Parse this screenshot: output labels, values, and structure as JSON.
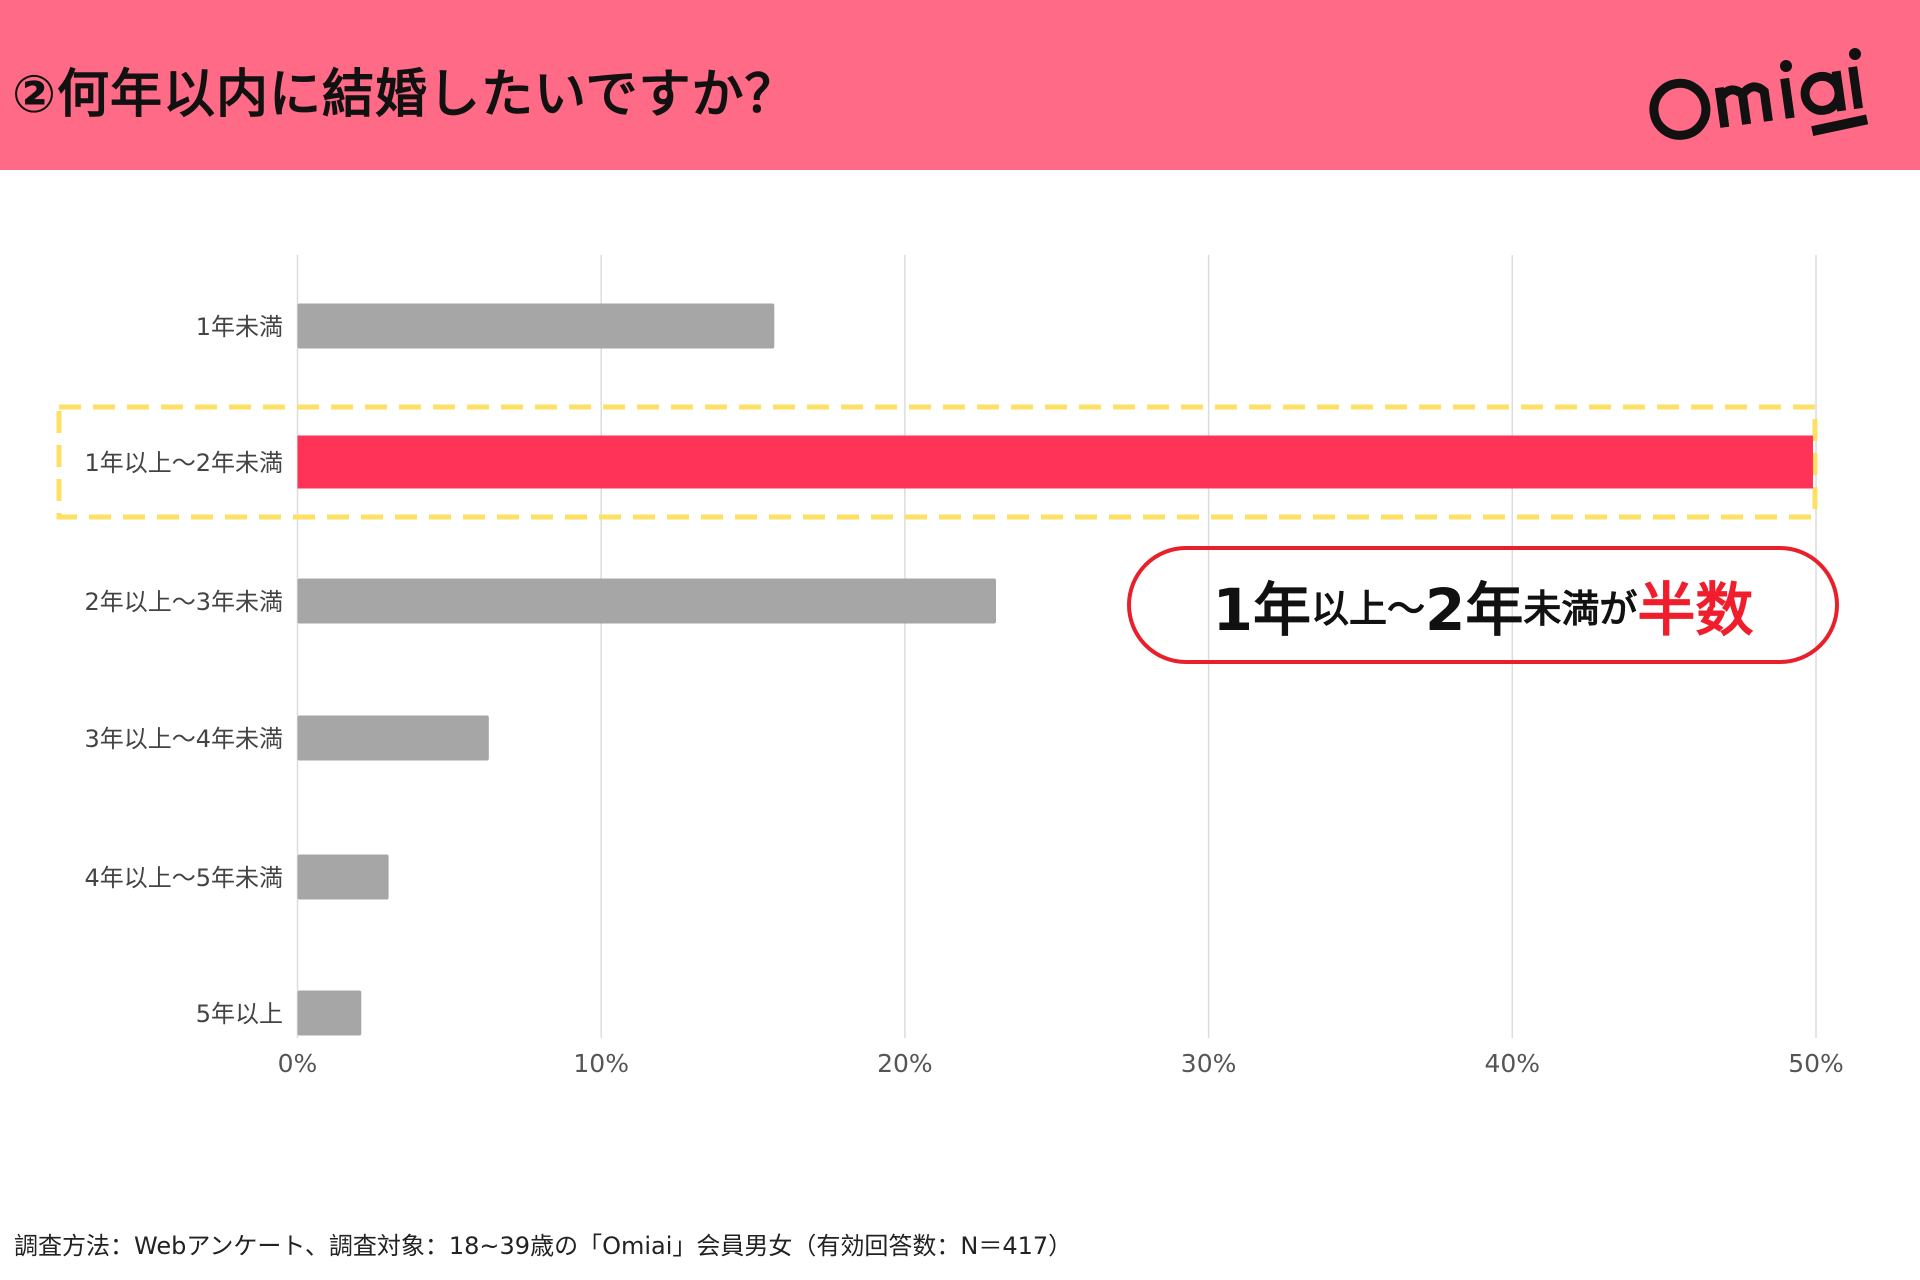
{
  "header": {
    "title": "②何年以内に結婚したいですか？",
    "logo": "Omiai",
    "bg_color": "#ff6b86"
  },
  "chart_data": {
    "type": "bar",
    "orientation": "horizontal",
    "categories": [
      "1年未満",
      "1年以上～2年未満",
      "2年以上～3年未満",
      "3年以上～4年未満",
      "4年以上～5年未満",
      "5年以上"
    ],
    "values": [
      15.7,
      49.9,
      23.0,
      6.3,
      3.0,
      2.1
    ],
    "xlim": [
      0,
      50
    ],
    "xticks": [
      "0%",
      "10%",
      "20%",
      "30%",
      "40%",
      "50%"
    ],
    "grid": true,
    "highlight_index": 1,
    "colors": {
      "bar": "#a6a6a6",
      "highlight": "#ff3358",
      "highlight_box": "#ffe066"
    }
  },
  "callout": {
    "part1": "1年",
    "part2": "以上～",
    "part3": "2年",
    "part4": "未満が",
    "part5": "半数"
  },
  "footer": {
    "note": "調査方法：Webアンケート、調査対象：18~39歳の「Omiai」会員男女（有効回答数：N＝417）"
  }
}
